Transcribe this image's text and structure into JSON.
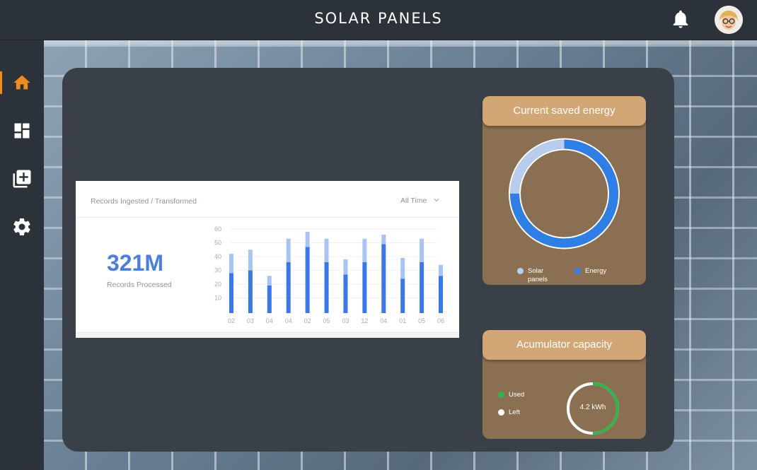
{
  "header": {
    "title": "SOLAR PANELS",
    "notification_icon": "bell-icon",
    "avatar_icon": "user-avatar"
  },
  "sidebar": {
    "items": [
      {
        "icon": "home-icon",
        "active": true
      },
      {
        "icon": "dashboard-icon",
        "active": false
      },
      {
        "icon": "add-library-icon",
        "active": false
      },
      {
        "icon": "gear-icon",
        "active": false
      }
    ],
    "active_color": "#f08a1c"
  },
  "records": {
    "title": "Records Ingested / Transformed",
    "time_filter": "All Time",
    "value": "321M",
    "value_label": "Records Processed"
  },
  "chart_data": {
    "type": "bar",
    "stacked": true,
    "categories": [
      "02",
      "03",
      "04",
      "04",
      "02",
      "05",
      "03",
      "12",
      "04",
      "01",
      "05",
      "06"
    ],
    "ylim": [
      0,
      60
    ],
    "yticks": [
      10,
      20,
      30,
      40,
      50,
      60
    ],
    "series": [
      {
        "values": [
          29,
          31,
          20,
          37,
          48,
          37,
          28,
          37,
          50,
          25,
          37,
          27
        ],
        "color": "#3b78e7"
      },
      {
        "values": [
          14,
          15,
          7,
          17,
          11,
          17,
          11,
          17,
          7,
          15,
          17,
          8
        ],
        "color": "#a8c4f0"
      }
    ],
    "grid": true
  },
  "saved_energy": {
    "title": "Current saved energy",
    "legend": [
      {
        "label": "Solar panels",
        "color": "#b8cdee"
      },
      {
        "label": "Energy",
        "color": "#2f7ee6"
      }
    ],
    "donut_fractions": {
      "solar_panels": 0.25,
      "energy": 0.75
    }
  },
  "accumulator": {
    "title": "Acumulator capacity",
    "legend": [
      {
        "label": "Used",
        "color": "#2fb54e"
      },
      {
        "label": "Left",
        "color": "#ffffff"
      }
    ],
    "value": "4.2 kWh",
    "used_fraction": 0.5
  }
}
